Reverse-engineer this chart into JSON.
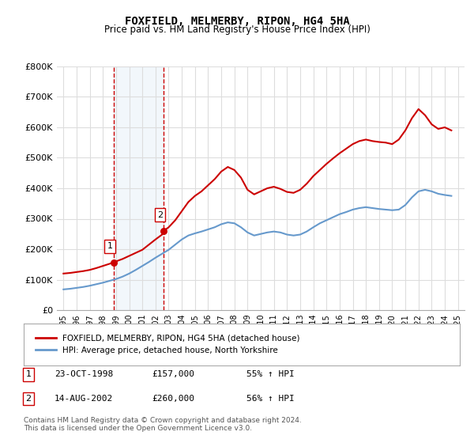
{
  "title": "FOXFIELD, MELMERBY, RIPON, HG4 5HA",
  "subtitle": "Price paid vs. HM Land Registry's House Price Index (HPI)",
  "ylabel_ticks": [
    "£0",
    "£100K",
    "£200K",
    "£300K",
    "£400K",
    "£500K",
    "£600K",
    "£700K",
    "£800K"
  ],
  "ytick_values": [
    0,
    100000,
    200000,
    300000,
    400000,
    500000,
    600000,
    700000,
    800000
  ],
  "ylim": [
    0,
    800000
  ],
  "title_color": "#000000",
  "background_color": "#ffffff",
  "plot_bg_color": "#ffffff",
  "grid_color": "#dddddd",
  "transaction1": {
    "date": 1998.81,
    "price": 157000,
    "label": "1"
  },
  "transaction2": {
    "date": 2002.62,
    "price": 260000,
    "label": "2"
  },
  "shade_color": "#cce0f0",
  "vline_color": "#cc0000",
  "red_line_color": "#cc0000",
  "blue_line_color": "#6699cc",
  "legend1": "FOXFIELD, MELMERBY, RIPON, HG4 5HA (detached house)",
  "legend2": "HPI: Average price, detached house, North Yorkshire",
  "table_rows": [
    {
      "num": "1",
      "date": "23-OCT-1998",
      "price": "£157,000",
      "hpi": "55% ↑ HPI"
    },
    {
      "num": "2",
      "date": "14-AUG-2002",
      "price": "£260,000",
      "hpi": "56% ↑ HPI"
    }
  ],
  "footnote": "Contains HM Land Registry data © Crown copyright and database right 2024.\nThis data is licensed under the Open Government Licence v3.0.",
  "red_line_x": [
    1995.0,
    1995.5,
    1996.0,
    1996.5,
    1997.0,
    1997.5,
    1998.0,
    1998.5,
    1998.81,
    1999.0,
    1999.5,
    2000.0,
    2000.5,
    2001.0,
    2001.5,
    2002.0,
    2002.5,
    2002.62,
    2003.0,
    2003.5,
    2004.0,
    2004.5,
    2005.0,
    2005.5,
    2006.0,
    2006.5,
    2007.0,
    2007.5,
    2008.0,
    2008.5,
    2009.0,
    2009.5,
    2010.0,
    2010.5,
    2011.0,
    2011.5,
    2012.0,
    2012.5,
    2013.0,
    2013.5,
    2014.0,
    2014.5,
    2015.0,
    2015.5,
    2016.0,
    2016.5,
    2017.0,
    2017.5,
    2018.0,
    2018.5,
    2019.0,
    2019.5,
    2020.0,
    2020.5,
    2021.0,
    2021.5,
    2022.0,
    2022.5,
    2023.0,
    2023.5,
    2024.0,
    2024.5
  ],
  "red_line_y": [
    120000,
    122000,
    125000,
    128000,
    132000,
    138000,
    145000,
    152000,
    157000,
    160000,
    168000,
    178000,
    188000,
    198000,
    215000,
    232000,
    248000,
    260000,
    272000,
    295000,
    325000,
    355000,
    375000,
    390000,
    410000,
    430000,
    455000,
    470000,
    460000,
    435000,
    395000,
    380000,
    390000,
    400000,
    405000,
    398000,
    388000,
    385000,
    395000,
    415000,
    440000,
    460000,
    480000,
    498000,
    515000,
    530000,
    545000,
    555000,
    560000,
    555000,
    552000,
    550000,
    545000,
    560000,
    590000,
    630000,
    660000,
    640000,
    610000,
    595000,
    600000,
    590000
  ],
  "blue_line_x": [
    1995.0,
    1995.5,
    1996.0,
    1996.5,
    1997.0,
    1997.5,
    1998.0,
    1998.5,
    1999.0,
    1999.5,
    2000.0,
    2000.5,
    2001.0,
    2001.5,
    2002.0,
    2002.5,
    2003.0,
    2003.5,
    2004.0,
    2004.5,
    2005.0,
    2005.5,
    2006.0,
    2006.5,
    2007.0,
    2007.5,
    2008.0,
    2008.5,
    2009.0,
    2009.5,
    2010.0,
    2010.5,
    2011.0,
    2011.5,
    2012.0,
    2012.5,
    2013.0,
    2013.5,
    2014.0,
    2014.5,
    2015.0,
    2015.5,
    2016.0,
    2016.5,
    2017.0,
    2017.5,
    2018.0,
    2018.5,
    2019.0,
    2019.5,
    2020.0,
    2020.5,
    2021.0,
    2021.5,
    2022.0,
    2022.5,
    2023.0,
    2023.5,
    2024.0,
    2024.5
  ],
  "blue_line_y": [
    68000,
    70000,
    73000,
    76000,
    80000,
    85000,
    90000,
    96000,
    102000,
    110000,
    120000,
    132000,
    145000,
    158000,
    172000,
    185000,
    198000,
    215000,
    232000,
    245000,
    252000,
    258000,
    265000,
    272000,
    282000,
    288000,
    285000,
    272000,
    255000,
    245000,
    250000,
    255000,
    258000,
    255000,
    248000,
    245000,
    248000,
    258000,
    272000,
    285000,
    295000,
    305000,
    315000,
    322000,
    330000,
    335000,
    338000,
    335000,
    332000,
    330000,
    328000,
    330000,
    345000,
    370000,
    390000,
    395000,
    390000,
    382000,
    378000,
    375000
  ]
}
